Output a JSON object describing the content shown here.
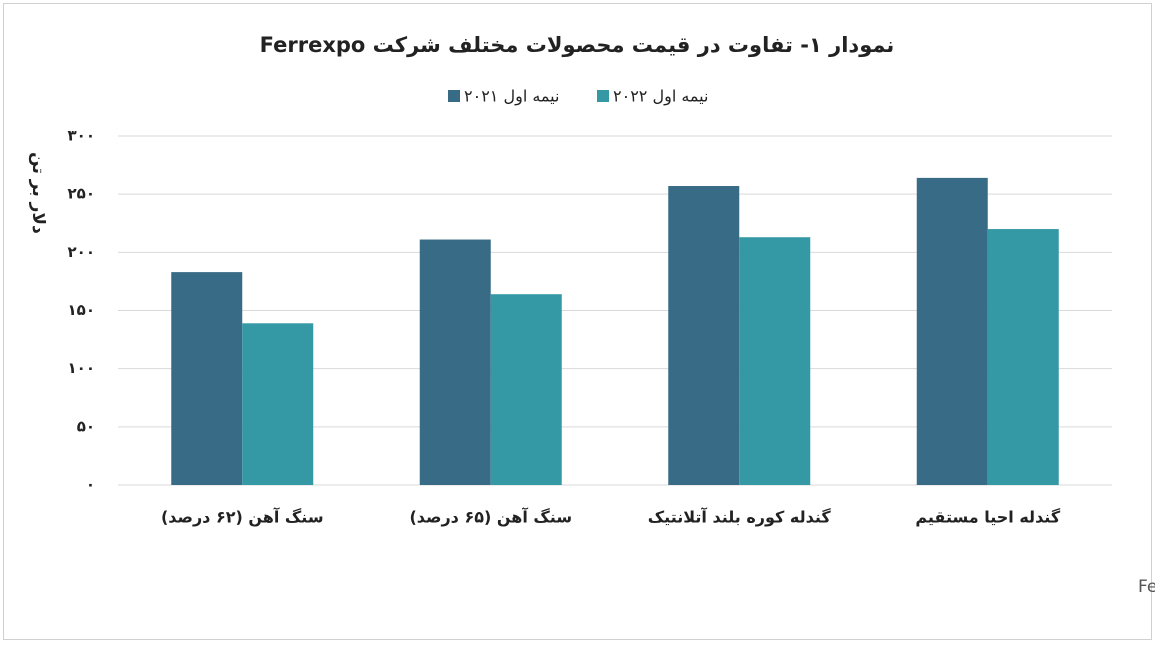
{
  "chart_data": {
    "type": "bar",
    "title": "نمودار ۱- تفاوت در قیمت محصولات مختلف شرکت Ferrexpo",
    "y_label": "دلار بر تن",
    "source": "منبع: Ferrexpo,AtrupatConsulting",
    "categories": [
      "سنگ آهن (۶۲ درصد)",
      "سنگ آهن (۶۵ درصد)",
      "گندله کوره بلند آتلانتیک",
      "گندله احیا مستقیم"
    ],
    "series": [
      {
        "name": "نیمه اول ۲۰۲۱",
        "color": "#386b86",
        "values": [
          183,
          211,
          257,
          264
        ]
      },
      {
        "name": "نیمه اول ۲۰۲۲",
        "color": "#3598a5",
        "values": [
          139,
          164,
          213,
          220
        ]
      }
    ],
    "ylim": [
      0,
      300
    ],
    "yticks": [
      {
        "value": 0,
        "label": "۰"
      },
      {
        "value": 50,
        "label": "۵۰"
      },
      {
        "value": 100,
        "label": "۱۰۰"
      },
      {
        "value": 150,
        "label": "۱۵۰"
      },
      {
        "value": 200,
        "label": "۲۰۰"
      },
      {
        "value": 250,
        "label": "۲۵۰"
      },
      {
        "value": 300,
        "label": "۳۰۰"
      }
    ],
    "grid": true
  }
}
